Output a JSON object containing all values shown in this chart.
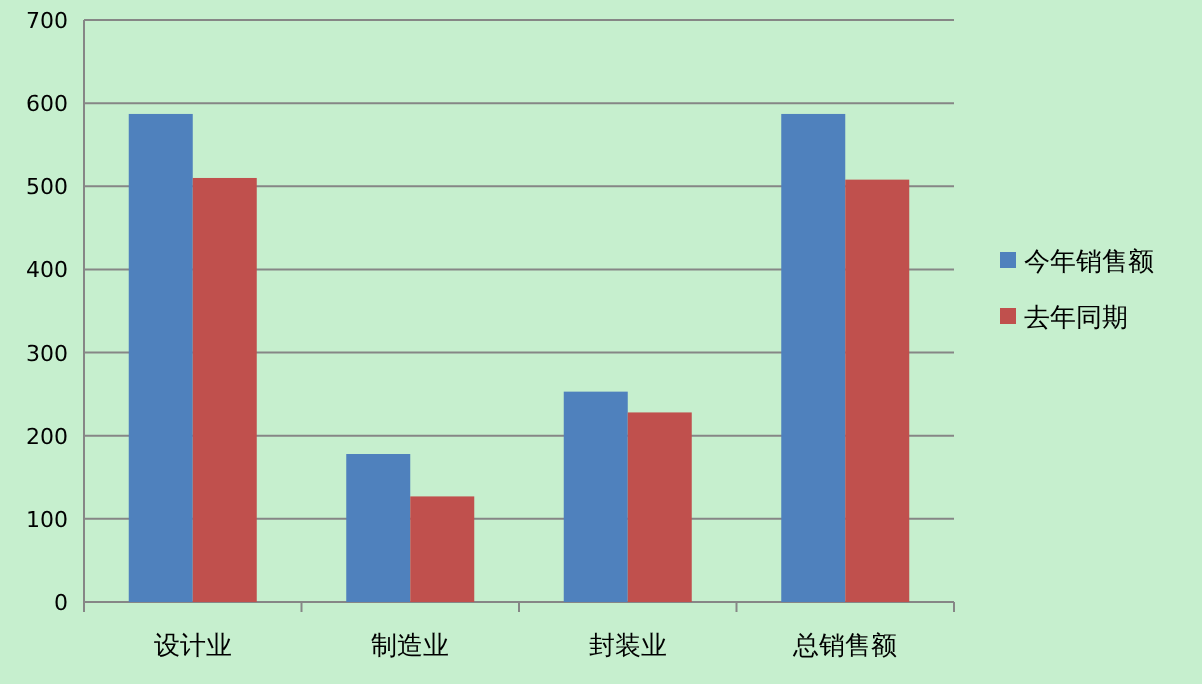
{
  "chart_data": {
    "type": "bar",
    "categories": [
      "设计业",
      "制造业",
      "封装业",
      "总销售额"
    ],
    "series": [
      {
        "name": "今年销售额",
        "color": "#4f81bd",
        "values": [
          587,
          178,
          253,
          587
        ]
      },
      {
        "name": "去年同期",
        "color": "#c0504d",
        "values": [
          510,
          127,
          228,
          508
        ]
      }
    ],
    "ylim": [
      0,
      700
    ],
    "yticks": [
      0,
      100,
      200,
      300,
      400,
      500,
      600,
      700
    ],
    "grid": "y",
    "legend": "right"
  }
}
